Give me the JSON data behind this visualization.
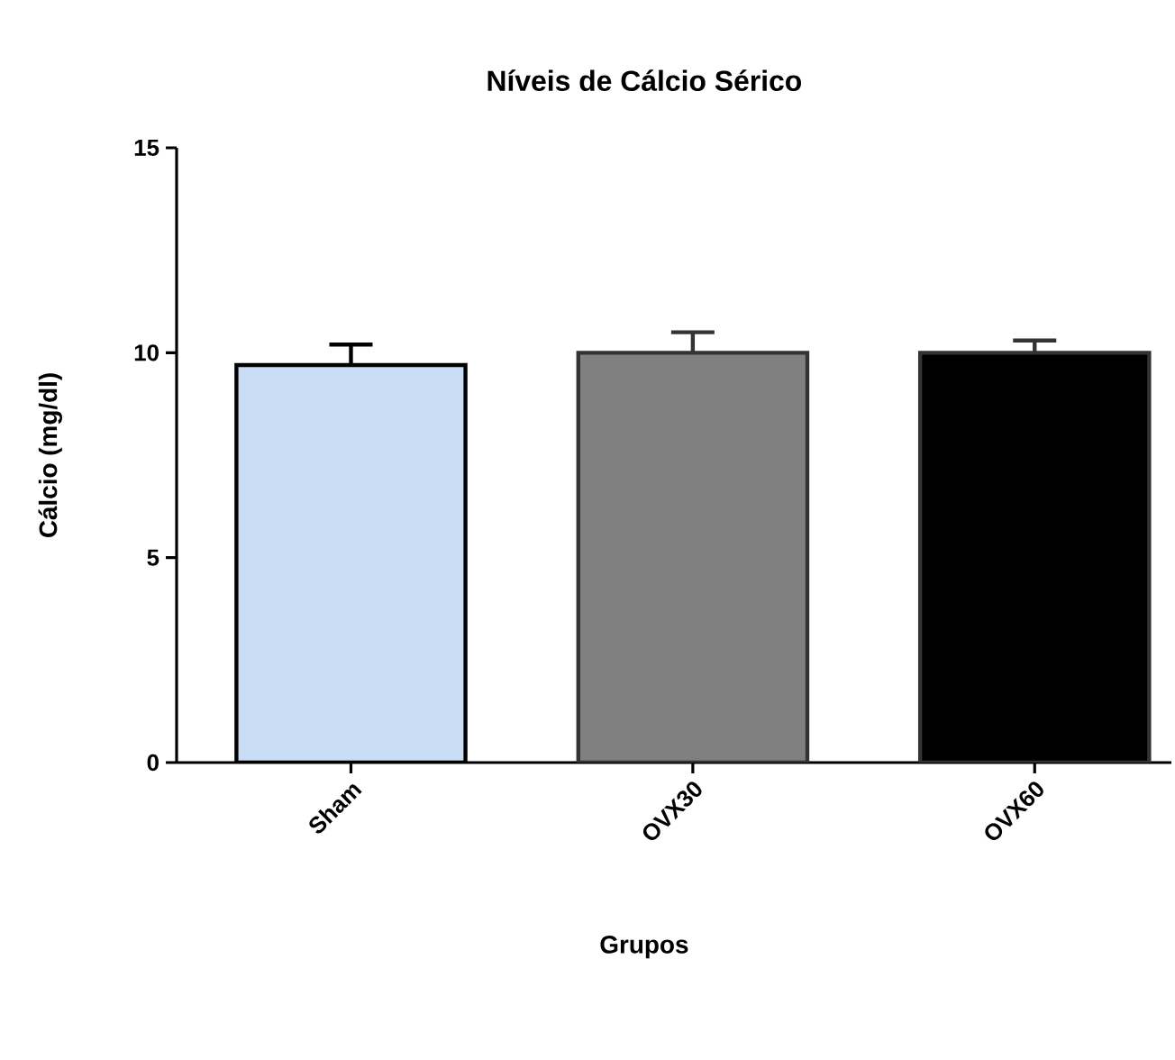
{
  "chart_data": {
    "type": "bar",
    "title": "Níveis de Cálcio Sérico",
    "xlabel": "Grupos",
    "ylabel": "Cálcio (mg/dl)",
    "categories": [
      "Sham",
      "OVX30",
      "OVX60"
    ],
    "values": [
      9.7,
      10.0,
      10.0
    ],
    "errors": [
      0.5,
      0.5,
      0.3
    ],
    "colors": [
      "#c9ddf5",
      "#808080",
      "#000000"
    ],
    "ylim": [
      0,
      15
    ],
    "yticks": [
      0,
      5,
      10,
      15
    ]
  }
}
